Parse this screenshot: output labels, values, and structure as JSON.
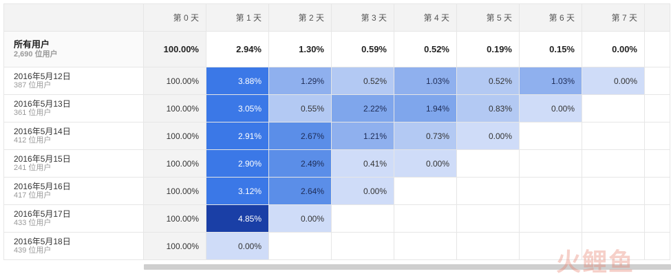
{
  "columns": [
    "第 0 天",
    "第 1 天",
    "第 2 天",
    "第 3 天",
    "第 4 天",
    "第 5 天",
    "第 6 天",
    "第 7 天"
  ],
  "summary": {
    "title": "所有用户",
    "users": "2,690 位用户",
    "values": [
      "100.00%",
      "2.94%",
      "1.30%",
      "0.59%",
      "0.52%",
      "0.19%",
      "0.15%",
      "0.00%"
    ]
  },
  "cohorts": [
    {
      "date": "2016年5月12日",
      "users": "387 位用户",
      "values": [
        "100.00%",
        "3.88%",
        "1.29%",
        "0.52%",
        "1.03%",
        "0.52%",
        "1.03%",
        "0.00%"
      ]
    },
    {
      "date": "2016年5月13日",
      "users": "361 位用户",
      "values": [
        "100.00%",
        "3.05%",
        "0.55%",
        "2.22%",
        "1.94%",
        "0.83%",
        "0.00%"
      ]
    },
    {
      "date": "2016年5月14日",
      "users": "412 位用户",
      "values": [
        "100.00%",
        "2.91%",
        "2.67%",
        "1.21%",
        "0.73%",
        "0.00%"
      ]
    },
    {
      "date": "2016年5月15日",
      "users": "241 位用户",
      "values": [
        "100.00%",
        "2.90%",
        "2.49%",
        "0.41%",
        "0.00%"
      ]
    },
    {
      "date": "2016年5月16日",
      "users": "417 位用户",
      "values": [
        "100.00%",
        "3.12%",
        "2.64%",
        "0.00%"
      ]
    },
    {
      "date": "2016年5月17日",
      "users": "433 位用户",
      "values": [
        "100.00%",
        "4.85%",
        "0.00%"
      ]
    },
    {
      "date": "2016年5月18日",
      "users": "439 位用户",
      "values": [
        "100.00%",
        "0.00%"
      ]
    }
  ],
  "colors": {
    "heat_max": "#1a3fa6",
    "heat_high": "#3b78e7",
    "heat_mid": "#8fb0ee",
    "heat_low": "#cfdcf8",
    "day0_bg": "#f3f3f3"
  },
  "watermark": "火鲤鱼"
}
